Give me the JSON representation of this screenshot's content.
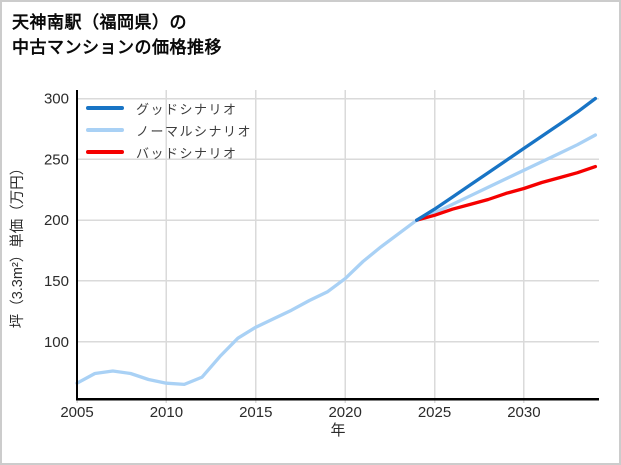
{
  "header": {
    "title_line1": "天神南駅（福岡県）の",
    "title_line2": "中古マンションの価格推移"
  },
  "chart_data": {
    "type": "line",
    "title": "天神南駅（福岡県）の中古マンションの価格推移",
    "xlabel": "年",
    "ylabel": "坪（3.3m²）単価（万円）",
    "x_ticks": [
      2005,
      2010,
      2015,
      2020,
      2025,
      2030
    ],
    "y_ticks": [
      100,
      150,
      200,
      250,
      300
    ],
    "xlim": [
      2005,
      2034.2
    ],
    "ylim": [
      53,
      307
    ],
    "grid": true,
    "legend_position": "top-left-inside",
    "axis_color": "#000000",
    "grid_color": "#dadada",
    "draw_order": [
      1,
      2,
      0
    ],
    "series": [
      {
        "name": "グッドシナリオ",
        "color": "#1874c5",
        "x": [
          2024,
          2025,
          2026,
          2027,
          2028,
          2029,
          2030,
          2031,
          2032,
          2033,
          2034
        ],
        "values": [
          200,
          209,
          219,
          229,
          239,
          249,
          259,
          269,
          279,
          289,
          300
        ]
      },
      {
        "name": "ノーマルシナリオ",
        "color": "#a9d1f5",
        "x": [
          2005,
          2006,
          2007,
          2008,
          2009,
          2010,
          2011,
          2012,
          2013,
          2014,
          2015,
          2016,
          2017,
          2018,
          2019,
          2020,
          2021,
          2022,
          2023,
          2024,
          2025,
          2026,
          2027,
          2028,
          2029,
          2030,
          2031,
          2032,
          2033,
          2034
        ],
        "values": [
          66,
          74,
          76,
          74,
          69,
          66,
          65,
          71,
          88,
          103,
          112,
          119,
          126,
          134,
          141,
          152,
          166,
          178,
          189,
          200,
          206,
          213,
          220,
          227,
          234,
          241,
          248,
          255,
          262,
          270
        ]
      },
      {
        "name": "バッドシナリオ",
        "color": "#f50000",
        "x": [
          2024,
          2025,
          2026,
          2027,
          2028,
          2029,
          2030,
          2031,
          2032,
          2033,
          2034
        ],
        "values": [
          200,
          204,
          209,
          213,
          217,
          222,
          226,
          231,
          235,
          239,
          244
        ]
      }
    ]
  }
}
